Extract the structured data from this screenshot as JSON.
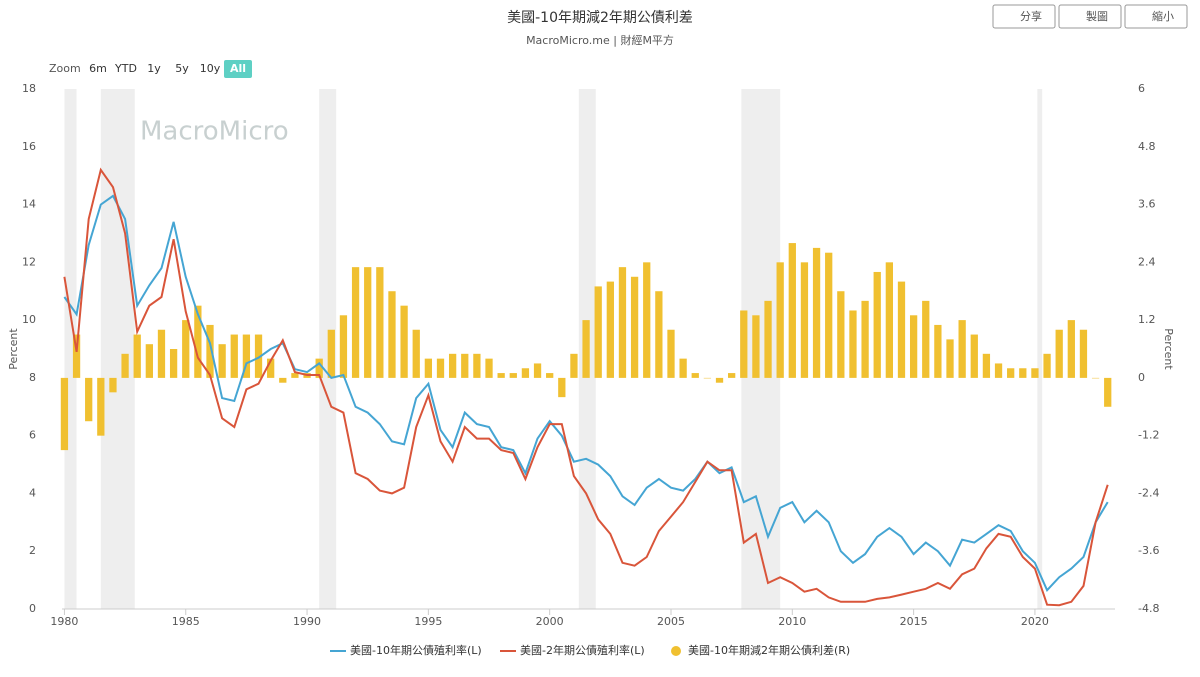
{
  "chart_data": {
    "type": "line",
    "title": "美國-10年期減2年期公債利差",
    "subtitle": "MacroMicro.me | 財經M平方",
    "watermark": "MacroMicro",
    "y_label": "Percent",
    "y2_label": "Percent",
    "x": [
      1980.0,
      1980.5,
      1981.0,
      1981.5,
      1982.0,
      1982.5,
      1983.0,
      1983.5,
      1984.0,
      1984.5,
      1985.0,
      1985.5,
      1986.0,
      1986.5,
      1987.0,
      1987.5,
      1988.0,
      1988.5,
      1989.0,
      1989.5,
      1990.0,
      1990.5,
      1991.0,
      1991.5,
      1992.0,
      1992.5,
      1993.0,
      1993.5,
      1994.0,
      1994.5,
      1995.0,
      1995.5,
      1996.0,
      1996.5,
      1997.0,
      1997.5,
      1998.0,
      1998.5,
      1999.0,
      1999.5,
      2000.0,
      2000.5,
      2001.0,
      2001.5,
      2002.0,
      2002.5,
      2003.0,
      2003.5,
      2004.0,
      2004.5,
      2005.0,
      2005.5,
      2006.0,
      2006.5,
      2007.0,
      2007.5,
      2008.0,
      2008.5,
      2009.0,
      2009.5,
      2010.0,
      2010.5,
      2011.0,
      2011.5,
      2012.0,
      2012.5,
      2013.0,
      2013.5,
      2014.0,
      2014.5,
      2015.0,
      2015.5,
      2016.0,
      2016.5,
      2017.0,
      2017.5,
      2018.0,
      2018.5,
      2019.0,
      2019.5,
      2020.0,
      2020.5,
      2021.0,
      2021.5,
      2022.0,
      2022.5,
      2023.0
    ],
    "series": [
      {
        "name": "美國-10年期公債殖利率(L)",
        "color": "#45a5d3",
        "kind": "line",
        "values": [
          10.8,
          10.2,
          12.6,
          14.0,
          14.3,
          13.5,
          10.5,
          11.2,
          11.8,
          13.4,
          11.5,
          10.2,
          9.2,
          7.3,
          7.2,
          8.5,
          8.7,
          9.0,
          9.2,
          8.3,
          8.2,
          8.5,
          8.0,
          8.1,
          7.0,
          6.8,
          6.4,
          5.8,
          5.7,
          7.3,
          7.8,
          6.2,
          5.6,
          6.8,
          6.4,
          6.3,
          5.6,
          5.5,
          4.7,
          5.9,
          6.5,
          6.0,
          5.1,
          5.2,
          5.0,
          4.6,
          3.9,
          3.6,
          4.2,
          4.5,
          4.2,
          4.1,
          4.5,
          5.1,
          4.7,
          4.9,
          3.7,
          3.9,
          2.5,
          3.5,
          3.7,
          3.0,
          3.4,
          3.0,
          2.0,
          1.6,
          1.9,
          2.5,
          2.8,
          2.5,
          1.9,
          2.3,
          2.0,
          1.5,
          2.4,
          2.3,
          2.6,
          2.9,
          2.7,
          2.0,
          1.6,
          0.65,
          1.1,
          1.4,
          1.8,
          3.0,
          3.7
        ]
      },
      {
        "name": "美國-2年期公債殖利率(L)",
        "color": "#d9553a",
        "kind": "line",
        "values": [
          11.5,
          8.9,
          13.5,
          15.2,
          14.6,
          13.0,
          9.6,
          10.5,
          10.8,
          12.8,
          10.3,
          8.7,
          8.1,
          6.6,
          6.3,
          7.6,
          7.8,
          8.6,
          9.3,
          8.2,
          8.1,
          8.1,
          7.0,
          6.8,
          4.7,
          4.5,
          4.1,
          4.0,
          4.2,
          6.3,
          7.4,
          5.8,
          5.1,
          6.3,
          5.9,
          5.9,
          5.5,
          5.4,
          4.5,
          5.6,
          6.4,
          6.4,
          4.6,
          4.0,
          3.1,
          2.6,
          1.6,
          1.5,
          1.8,
          2.7,
          3.2,
          3.7,
          4.4,
          5.1,
          4.8,
          4.8,
          2.3,
          2.6,
          0.9,
          1.1,
          0.9,
          0.6,
          0.7,
          0.4,
          0.25,
          0.25,
          0.25,
          0.35,
          0.4,
          0.5,
          0.6,
          0.7,
          0.9,
          0.7,
          1.2,
          1.4,
          2.1,
          2.6,
          2.5,
          1.8,
          1.4,
          0.15,
          0.13,
          0.25,
          0.8,
          3.0,
          4.3
        ]
      },
      {
        "name": "美國-10年期減2年期公債利差(R)",
        "color": "#f0c030",
        "kind": "bar",
        "axis": "y2",
        "values": [
          -1.5,
          0.9,
          -0.9,
          -1.2,
          -0.3,
          0.5,
          0.9,
          0.7,
          1.0,
          0.6,
          1.2,
          1.5,
          1.1,
          0.7,
          0.9,
          0.9,
          0.9,
          0.4,
          -0.1,
          0.1,
          0.1,
          0.4,
          1.0,
          1.3,
          2.3,
          2.3,
          2.3,
          1.8,
          1.5,
          1.0,
          0.4,
          0.4,
          0.5,
          0.5,
          0.5,
          0.4,
          0.1,
          0.1,
          0.2,
          0.3,
          0.1,
          -0.4,
          0.5,
          1.2,
          1.9,
          2.0,
          2.3,
          2.1,
          2.4,
          1.8,
          1.0,
          0.4,
          0.1,
          0.0,
          -0.1,
          0.1,
          1.4,
          1.3,
          1.6,
          2.4,
          2.8,
          2.4,
          2.7,
          2.6,
          1.8,
          1.4,
          1.6,
          2.2,
          2.4,
          2.0,
          1.3,
          1.6,
          1.1,
          0.8,
          1.2,
          0.9,
          0.5,
          0.3,
          0.2,
          0.2,
          0.2,
          0.5,
          1.0,
          1.2,
          1.0,
          0.0,
          -0.6
        ]
      }
    ],
    "recessions": [
      [
        1980.0,
        1980.5
      ],
      [
        1981.5,
        1982.9
      ],
      [
        1990.5,
        1991.2
      ],
      [
        2001.2,
        2001.9
      ],
      [
        2007.9,
        2009.5
      ],
      [
        2020.1,
        2020.3
      ]
    ],
    "xlim": [
      1979.9,
      2023.3
    ],
    "xticks": [
      1980,
      1985,
      1990,
      1995,
      2000,
      2005,
      2010,
      2015,
      2020
    ],
    "ylim": [
      0,
      18
    ],
    "yticks": [
      0,
      2,
      4,
      6,
      8,
      10,
      12,
      14,
      16,
      18
    ],
    "y2lim": [
      -4.8,
      6
    ],
    "y2ticks": [
      -4.8,
      -3.6,
      -2.4,
      -1.2,
      0,
      1.2,
      2.4,
      3.6,
      4.8,
      6
    ]
  },
  "toolbar": [
    "分享",
    "製圖",
    "縮小"
  ],
  "range_selector": {
    "label": "Zoom",
    "options": [
      "6m",
      "YTD",
      "1y",
      "5y",
      "10y",
      "All"
    ],
    "active": 5
  }
}
